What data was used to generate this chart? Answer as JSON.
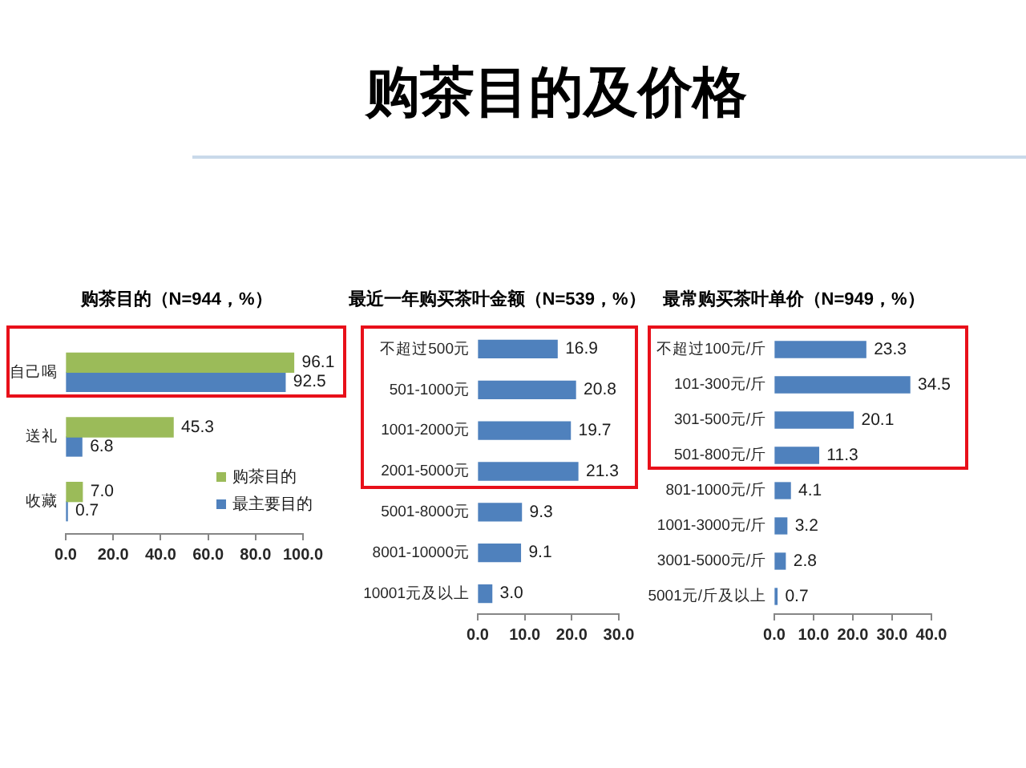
{
  "chart_data": [
    {
      "type": "other",
      "title": "购茶目的及价格"
    },
    {
      "type": "bar",
      "orientation": "horizontal",
      "title": "购茶目的（N=944，%）",
      "categories": [
        "自己喝",
        "送礼",
        "收藏"
      ],
      "series": [
        {
          "name": "购茶目的",
          "color": "#9bbb59",
          "values": [
            96.1,
            45.3,
            7.0
          ],
          "value_labels": [
            "96.1",
            "45.3",
            "7.0"
          ]
        },
        {
          "name": "最主要目的",
          "color": "#4f81bd",
          "values": [
            92.5,
            6.8,
            0.7
          ],
          "value_labels": [
            "92.5",
            "6.8",
            "0.7"
          ]
        }
      ],
      "xlim": [
        0,
        100
      ],
      "xticks": [
        {
          "value": 0,
          "label": "0.0"
        },
        {
          "value": 20,
          "label": "20.0"
        },
        {
          "value": 40,
          "label": "40.0"
        },
        {
          "value": 60,
          "label": "60.0"
        },
        {
          "value": 80,
          "label": "80.0"
        },
        {
          "value": 100,
          "label": "100.0"
        }
      ],
      "legend": "bottom right"
    },
    {
      "type": "bar",
      "orientation": "horizontal",
      "title": "最近一年购买茶叶金额（N=539，%）",
      "categories": [
        "不超过500元",
        "501-1000元",
        "1001-2000元",
        "2001-5000元",
        "5001-8000元",
        "8001-10000元",
        "10001元及以上"
      ],
      "values": [
        16.9,
        20.8,
        19.7,
        21.3,
        9.3,
        9.1,
        3.0
      ],
      "value_labels": [
        "16.9",
        "20.8",
        "19.7",
        "21.3",
        "9.3",
        "9.1",
        "3.0"
      ],
      "color": "#4f81bd",
      "xlim": [
        0,
        30
      ],
      "xticks": [
        {
          "value": 0,
          "label": "0.0"
        },
        {
          "value": 10,
          "label": "10.0"
        },
        {
          "value": 20,
          "label": "20.0"
        },
        {
          "value": 30,
          "label": "30.0"
        }
      ]
    },
    {
      "type": "bar",
      "orientation": "horizontal",
      "title": "最常购买茶叶单价（N=949，%）",
      "categories": [
        "不超过100元/斤",
        "101-300元/斤",
        "301-500元/斤",
        "501-800元/斤",
        "801-1000元/斤",
        "1001-3000元/斤",
        "3001-5000元/斤",
        "5001元/斤及以上"
      ],
      "values": [
        23.3,
        34.5,
        20.1,
        11.3,
        4.1,
        3.2,
        2.8,
        0.7
      ],
      "data_labels": true,
      "color": "#4f81bd",
      "xlim": [
        0,
        40
      ],
      "xticks": [
        {
          "value": 0,
          "label": "0.0"
        },
        {
          "value": 10,
          "label": "10.0"
        },
        {
          "value": 20,
          "label": "20.0"
        },
        {
          "value": 30,
          "label": "30.0"
        },
        {
          "value": 40,
          "label": "40.0"
        }
      ]
    }
  ]
}
